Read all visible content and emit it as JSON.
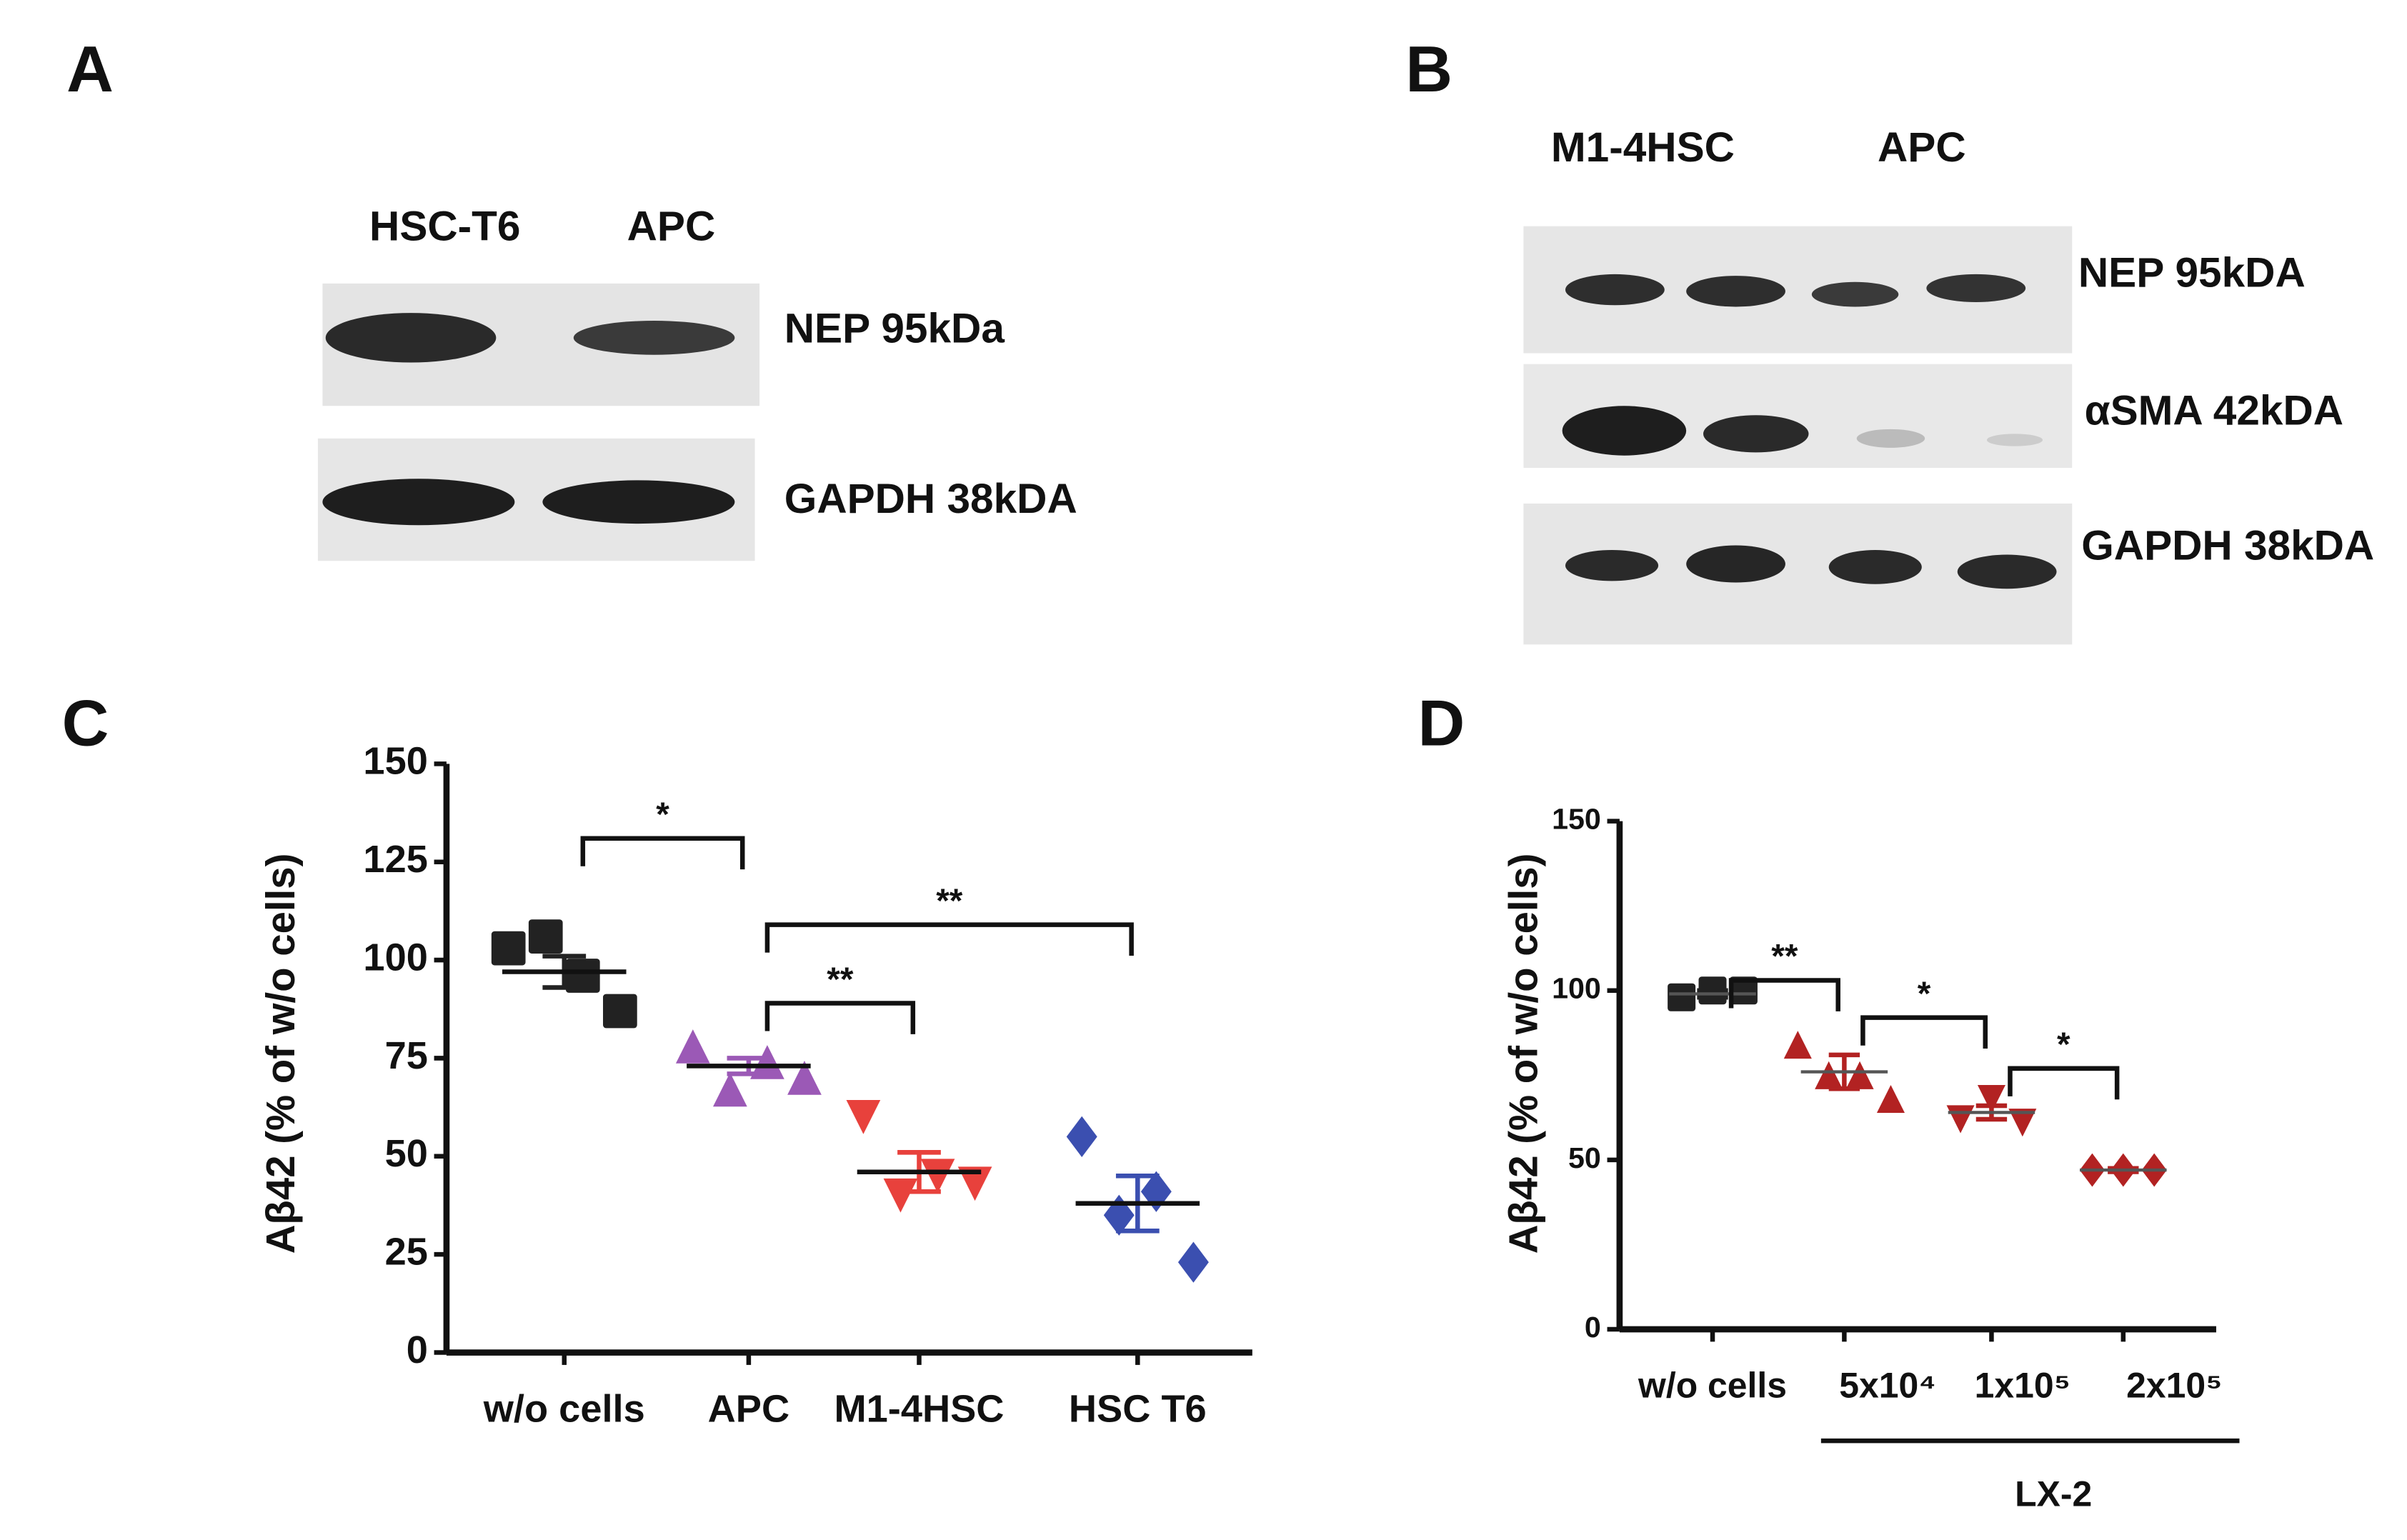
{
  "blots": [
    {
      "panel": "A",
      "lanes": [
        "HSC-T6",
        "APC"
      ],
      "bands": [
        "NEP 95kDa",
        "GAPDH 38kDA"
      ]
    },
    {
      "panel": "B",
      "lanes": [
        "M1-4HSC",
        "APC"
      ],
      "bands": [
        "NEP 95kDA",
        "αSMA 42kDA",
        "GAPDH 38kDA"
      ]
    }
  ],
  "chart_data": [
    {
      "type": "scatter",
      "panel": "C",
      "ylabel": "Aβ42 (% of w/o cells)",
      "categories": [
        "w/o cells",
        "APC",
        "M1-4HSC",
        "HSC T6"
      ],
      "ylim": [
        0,
        150
      ],
      "yticks": [
        0,
        25,
        50,
        75,
        100,
        125,
        150
      ],
      "series": [
        {
          "color": "#222222",
          "marker": "square",
          "values": [
            103,
            106,
            96,
            87
          ],
          "mean": 97,
          "sem": 4
        },
        {
          "color": "#9b59b6",
          "marker": "triangle",
          "values": [
            78,
            67,
            74,
            70
          ],
          "mean": 73,
          "sem": 2
        },
        {
          "color": "#e8413c",
          "marker": "triangle-down",
          "values": [
            60,
            40,
            45,
            43
          ],
          "mean": 46,
          "sem": 5
        },
        {
          "color": "#3b4fb0",
          "marker": "diamond",
          "values": [
            55,
            35,
            41,
            23
          ],
          "mean": 38,
          "sem": 7
        }
      ],
      "annotations": [
        {
          "text": "*",
          "from": "w/o cells",
          "to": "APC",
          "y": 131
        },
        {
          "text": "**",
          "from": "APC",
          "to": "HSC T6",
          "y": 109
        },
        {
          "text": "**",
          "from": "APC",
          "to": "M1-4HSC",
          "y": 89
        }
      ]
    },
    {
      "type": "scatter",
      "panel": "D",
      "ylabel": "Aβ42 (% of w/o cells)",
      "categories": [
        "w/o cells",
        "5x10⁴",
        "1x10⁵",
        "2x10⁵"
      ],
      "group_label": "LX-2",
      "ylim": [
        0,
        150
      ],
      "yticks": [
        0,
        50,
        100,
        150
      ],
      "series": [
        {
          "color": "#222222",
          "marker": "square",
          "values": [
            98,
            100,
            100
          ],
          "mean": 99,
          "sem": 1
        },
        {
          "color": "#b22222",
          "marker": "triangle",
          "values": [
            84,
            75,
            75,
            68
          ],
          "mean": 76,
          "sem": 5
        },
        {
          "color": "#b22222",
          "marker": "triangle-down",
          "values": [
            62,
            68,
            61
          ],
          "mean": 64,
          "sem": 2
        },
        {
          "color": "#b22222",
          "marker": "diamond",
          "values": [
            47,
            47,
            47
          ],
          "mean": 47,
          "sem": 0.5
        }
      ],
      "annotations": [
        {
          "text": "**",
          "from": "w/o cells",
          "to": "5x10⁴",
          "y": 103
        },
        {
          "text": "*",
          "from": "5x10⁴",
          "to": "1x10⁵",
          "y": 92
        },
        {
          "text": "*",
          "from": "1x10⁵",
          "to": "2x10⁵",
          "y": 77
        }
      ]
    }
  ]
}
